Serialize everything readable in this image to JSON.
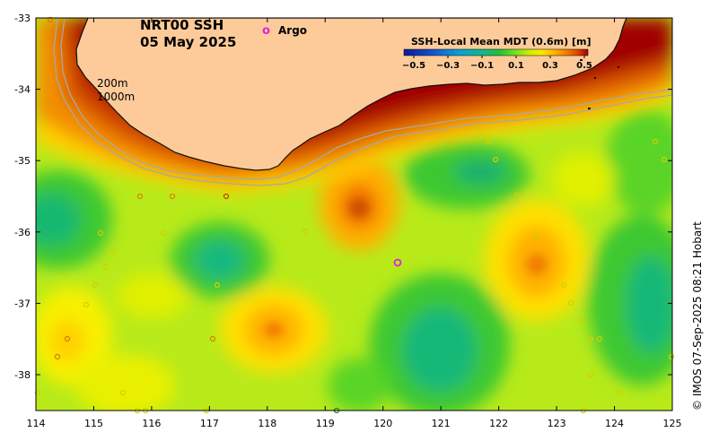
{
  "map": {
    "title_line1": "NRT00 SSH",
    "title_line2": "05 May 2025",
    "argo_symbol": "o",
    "argo_label": "Argo",
    "isobath_200": "200m",
    "isobath_1000": "1000m",
    "credit": "© IMOS 07-Sep-2025 08:21 Hobart",
    "lon_ticks": [
      "114",
      "115",
      "116",
      "117",
      "118",
      "119",
      "120",
      "121",
      "122",
      "123",
      "124",
      "125"
    ],
    "lat_ticks": [
      "-33",
      "-34",
      "-35",
      "-36",
      "-37",
      "-38"
    ],
    "colorbar": {
      "title": "SSH-Local Mean MDT (0.6m) [m]",
      "ticks": [
        "−0.5",
        "−0.3",
        "−0.1",
        "0.1",
        "0.3",
        "0.5"
      ],
      "colors": [
        "#0a1a9a",
        "#1450d0",
        "#0aa0d8",
        "#10b890",
        "#1ec040",
        "#6ee01a",
        "#c8f000",
        "#ffe800",
        "#ffb000",
        "#f07800",
        "#d84000",
        "#a00000"
      ]
    },
    "colors": {
      "land": "#fdcb99",
      "coast": "#111111",
      "isobath": "#a8a8a8",
      "argo_highlight": "#e020e0"
    }
  }
}
